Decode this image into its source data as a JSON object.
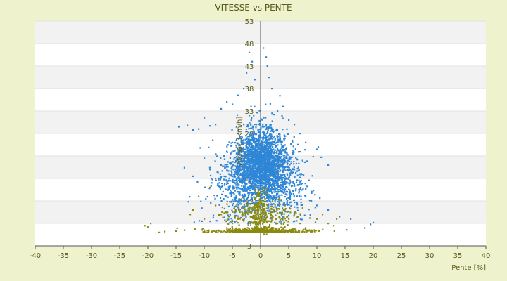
{
  "chart_data": {
    "type": "scatter",
    "title": "VITESSE vs PENTE",
    "xlabel": "Pente [%]",
    "ylabel": "Vitesse [km/h]",
    "xlim": [
      -40,
      40
    ],
    "ylim": [
      3,
      53
    ],
    "x_ticks": [
      "-40",
      "-35",
      "-30",
      "-25",
      "-20",
      "-15",
      "-10",
      "-5",
      "0",
      "5",
      "10",
      "15",
      "20",
      "25",
      "30",
      "35",
      "40"
    ],
    "y_ticks": [
      "3",
      "8",
      "13",
      "18",
      "23",
      "28",
      "33",
      "38",
      "43",
      "48",
      "53"
    ],
    "grid": "horizontal alternating bands",
    "legend": "none",
    "series": [
      {
        "color": "#2f86d6",
        "description_points": [
          [
            -14.5,
            29.5
          ],
          [
            -13,
            29.8
          ],
          [
            -12,
            28.8
          ],
          [
            -11,
            29
          ],
          [
            -10,
            31.5
          ],
          [
            -9,
            29.7
          ],
          [
            -8.5,
            26.5
          ],
          [
            -8,
            30
          ],
          [
            -7,
            33.5
          ],
          [
            -6,
            35
          ],
          [
            -5,
            34.5
          ],
          [
            -4,
            36.5
          ],
          [
            -3,
            38
          ],
          [
            -2.5,
            41.5
          ],
          [
            -2,
            46
          ],
          [
            -1.5,
            44
          ],
          [
            -1,
            40
          ],
          [
            0.5,
            47
          ],
          [
            1,
            45
          ],
          [
            1.2,
            43
          ],
          [
            1.5,
            40.5
          ],
          [
            2,
            38
          ],
          [
            3,
            33
          ],
          [
            4,
            34
          ],
          [
            5,
            31
          ],
          [
            6,
            30
          ],
          [
            7,
            28
          ],
          [
            8,
            26
          ],
          [
            10,
            24.5
          ],
          [
            12,
            21
          ],
          [
            18.5,
            7
          ],
          [
            19.5,
            7.8
          ],
          [
            20,
            8.2
          ],
          [
            -12,
            18.5
          ],
          [
            -10,
            22.5
          ],
          [
            -9,
            20
          ],
          [
            -8,
            18
          ],
          [
            -7,
            21
          ],
          [
            -6,
            24
          ],
          [
            -5,
            26
          ],
          [
            -4,
            28
          ],
          [
            -3,
            30
          ],
          [
            -2,
            32
          ],
          [
            -1,
            28
          ],
          [
            0,
            27
          ],
          [
            1,
            30
          ],
          [
            2,
            29
          ],
          [
            3,
            27
          ],
          [
            4,
            25
          ],
          [
            5,
            22
          ],
          [
            6,
            20
          ],
          [
            7,
            17
          ],
          [
            8,
            14
          ],
          [
            9,
            13
          ],
          [
            10,
            12
          ],
          [
            12,
            11
          ],
          [
            14,
            9.5
          ],
          [
            16,
            9
          ]
        ]
      },
      {
        "color": "#8a8a10",
        "description_points": [
          [
            -20.5,
            7.5
          ],
          [
            -20,
            7.2
          ],
          [
            -19.5,
            8
          ],
          [
            -18,
            6
          ],
          [
            -17,
            6.2
          ],
          [
            -15,
            6.3
          ],
          [
            -13.5,
            6.5
          ],
          [
            -12.5,
            10
          ],
          [
            -12,
            11
          ],
          [
            -11,
            14
          ],
          [
            -10,
            9
          ],
          [
            -9,
            16
          ],
          [
            -8,
            12
          ],
          [
            -7,
            10
          ],
          [
            -6,
            7
          ],
          [
            -5,
            8
          ],
          [
            -4,
            9
          ],
          [
            -3,
            10
          ],
          [
            -2,
            11
          ],
          [
            -1,
            12
          ],
          [
            0,
            13
          ],
          [
            1,
            10
          ],
          [
            2,
            9
          ],
          [
            3,
            8
          ],
          [
            4,
            7
          ],
          [
            5,
            9
          ],
          [
            6,
            10
          ],
          [
            7,
            8
          ],
          [
            8,
            7
          ],
          [
            9,
            6.5
          ],
          [
            10,
            9
          ],
          [
            11,
            10
          ],
          [
            12,
            8
          ],
          [
            13,
            7.5
          ],
          [
            13.5,
            9
          ]
        ]
      }
    ]
  }
}
